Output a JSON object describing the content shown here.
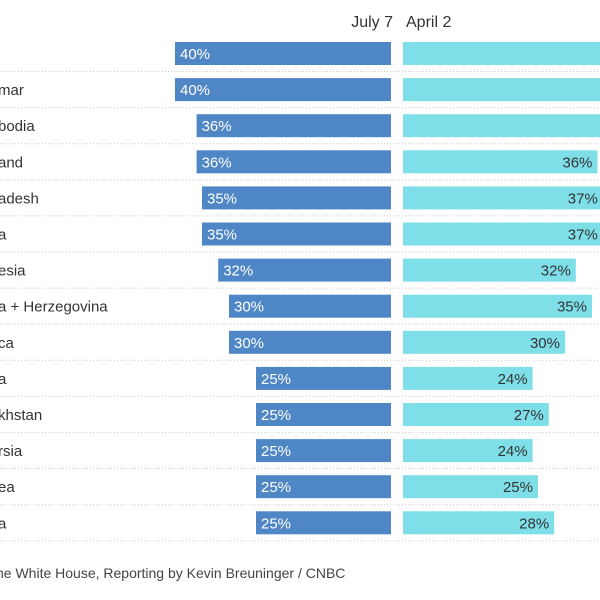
{
  "colors": {
    "july_bar": "#4f86c6",
    "april_bar": "#7edfe8",
    "label_text": "#333333",
    "bar_label_text": "#ffffff",
    "april_label_text": "#333333",
    "row_divider": "#c9c9c9"
  },
  "source": "he White House, Reporting by Kevin Breuninger / CNBC",
  "chart_data": {
    "type": "bar",
    "orientation": "horizontal",
    "xlim": [
      0,
      50
    ],
    "grid": false,
    "categories": [
      "",
      "mar",
      "bodia",
      "and",
      "adesh",
      "a",
      "esia",
      "a + Herzegovina",
      "ca",
      "a",
      "khstan",
      "rsia",
      "ea",
      "a"
    ],
    "series": [
      {
        "name": "July 7",
        "values": [
          40,
          40,
          36,
          36,
          35,
          35,
          32,
          30,
          30,
          25,
          25,
          25,
          25,
          25
        ],
        "labels": [
          "40%",
          "40%",
          "36%",
          "36%",
          "35%",
          "35%",
          "32%",
          "30%",
          "30%",
          "25%",
          "25%",
          "25%",
          "25%",
          "25%"
        ]
      },
      {
        "name": "April 2",
        "values": [
          null,
          null,
          null,
          36,
          37,
          37,
          32,
          35,
          30,
          24,
          27,
          24,
          25,
          28
        ],
        "labels": [
          "",
          "",
          "",
          "36%",
          "37%",
          "37%",
          "32%",
          "35%",
          "30%",
          "24%",
          "27%",
          "24%",
          "25%",
          "28%"
        ]
      }
    ]
  }
}
